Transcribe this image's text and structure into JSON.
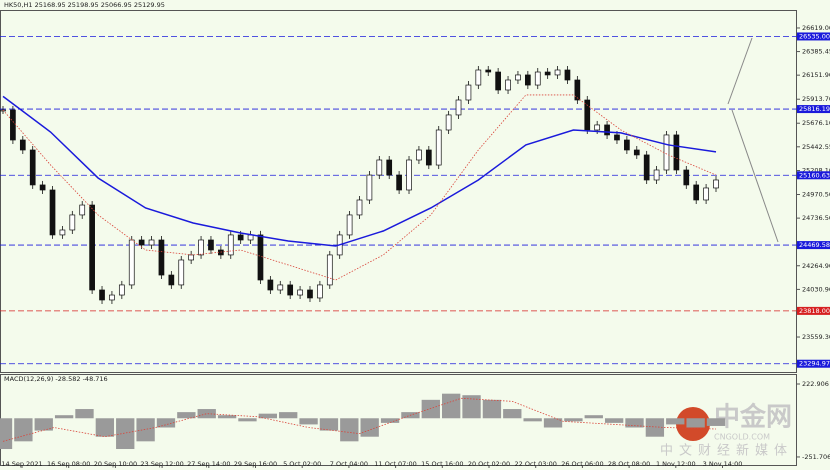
{
  "chart_data": {
    "type": "candlestick",
    "title": "HK50,H1  25168.95 25198.95 25066.95 25129.95",
    "close": [
      25807,
      25510,
      25411,
      25065,
      25015,
      24570,
      24619,
      24768,
      24866,
      24025,
      23926,
      23975,
      24075,
      24520,
      24470,
      24520,
      24173,
      24075,
      24322,
      24372,
      24520,
      24421,
      24372,
      24570,
      24520,
      24570,
      24124,
      24025,
      24075,
      23975,
      24025,
      23946,
      24075,
      24372,
      24570,
      24768,
      24916,
      25163,
      25312,
      25163,
      25015,
      25312,
      25411,
      25262,
      25609,
      25758,
      25906,
      26054,
      26203,
      26183,
      26005,
      26104,
      26154,
      26054,
      26183,
      26154,
      26203,
      26104,
      25906,
      25609,
      25659,
      25560,
      25510,
      25411,
      25362,
      25114,
      25213,
      25560,
      25213,
      25065,
      24916,
      25035,
      25114
    ],
    "series": [
      {
        "color": "#1a1adb",
        "values": [
          25942,
          25589,
          25134,
          24837,
          24688,
          24589,
          24510,
          24460,
          24609,
          24837,
          25114,
          25461,
          25609,
          25580,
          25461,
          25392
        ]
      },
      {
        "color": "#d9453a",
        "values": [
          25807,
          25263,
          24768,
          24421,
          24372,
          24421,
          24273,
          24124,
          24372,
          24768,
          25411,
          25956,
          25956,
          25609,
          25362,
          25163
        ]
      }
    ],
    "ylim": [
      23213,
      26797
    ],
    "yticks": [
      {
        "value": 26619,
        "label": "26619.00"
      },
      26385.45,
      {
        "value": 26151.9,
        "label": "26151.90"
      },
      {
        "value": 25913.7,
        "label": "25913.70"
      },
      {
        "value": 25676.1,
        "label": "25676.10"
      },
      25442.55,
      {
        "value": 25208.1,
        "label": "25208.10"
      },
      {
        "value": 24970.5,
        "label": "24970.50"
      },
      {
        "value": 24736.5,
        "label": "24736.50"
      },
      {
        "value": 24264.9,
        "label": "24264.90"
      },
      {
        "value": 24030.9,
        "label": "24030.90"
      },
      {
        "value": 23559.3,
        "label": "23559.30"
      }
    ],
    "levels": [
      {
        "value": 26535,
        "label": "26535.00",
        "color": "#1a1adb"
      },
      {
        "value": 25816.19,
        "color": "#1a1adb"
      },
      {
        "value": 25160.63,
        "color": "#1a1adb"
      },
      {
        "value": 24469.58,
        "color": "#1a1adb"
      },
      {
        "value": 23818,
        "label": "23818.00",
        "color": "#d62020"
      },
      {
        "value": 23294.97,
        "color": "#1a1adb"
      }
    ],
    "xticks": [
      "14 Sep 2021",
      "16 Sep 08:00",
      "20 Sep 10:00",
      "23 Sep 12:00",
      "27 Sep 14:00",
      "29 Sep 16:00",
      "5 Oct 02:00",
      "7 Oct 04:00",
      "11 Oct 07:00",
      "15 Oct 16:00",
      "20 Oct 02:00",
      "22 Oct 03:00",
      "26 Oct 06:00",
      "28 Oct 08:00",
      "1 Nov 12:00",
      "3 Nov 14:00"
    ],
    "macd": {
      "title": "MACD(12,26,9) -28.582 -48.716",
      "color": "#9a9a9a",
      "signal_color": "#d9453a",
      "histogram": [
        -200,
        -150,
        -80,
        20,
        60,
        -120,
        -200,
        -150,
        -60,
        40,
        60,
        20,
        -20,
        30,
        40,
        -40,
        -80,
        -150,
        -120,
        -30,
        40,
        120,
        160,
        150,
        120,
        60,
        -20,
        -60,
        -20,
        20,
        -30,
        -60,
        -120,
        -40,
        -60,
        -50
      ],
      "signal": [
        -150,
        -60,
        -120,
        -60,
        30,
        10,
        -60,
        -100,
        20,
        130,
        110,
        -20,
        -40,
        -60,
        -70
      ],
      "ylim": [
        -304,
        288
      ],
      "yticks": [
        222.906,
        -251.706
      ]
    },
    "watermark": {
      "logo": "中金网",
      "site": "CNGOLD.COM",
      "slogan": "中文财经新媒体"
    }
  }
}
